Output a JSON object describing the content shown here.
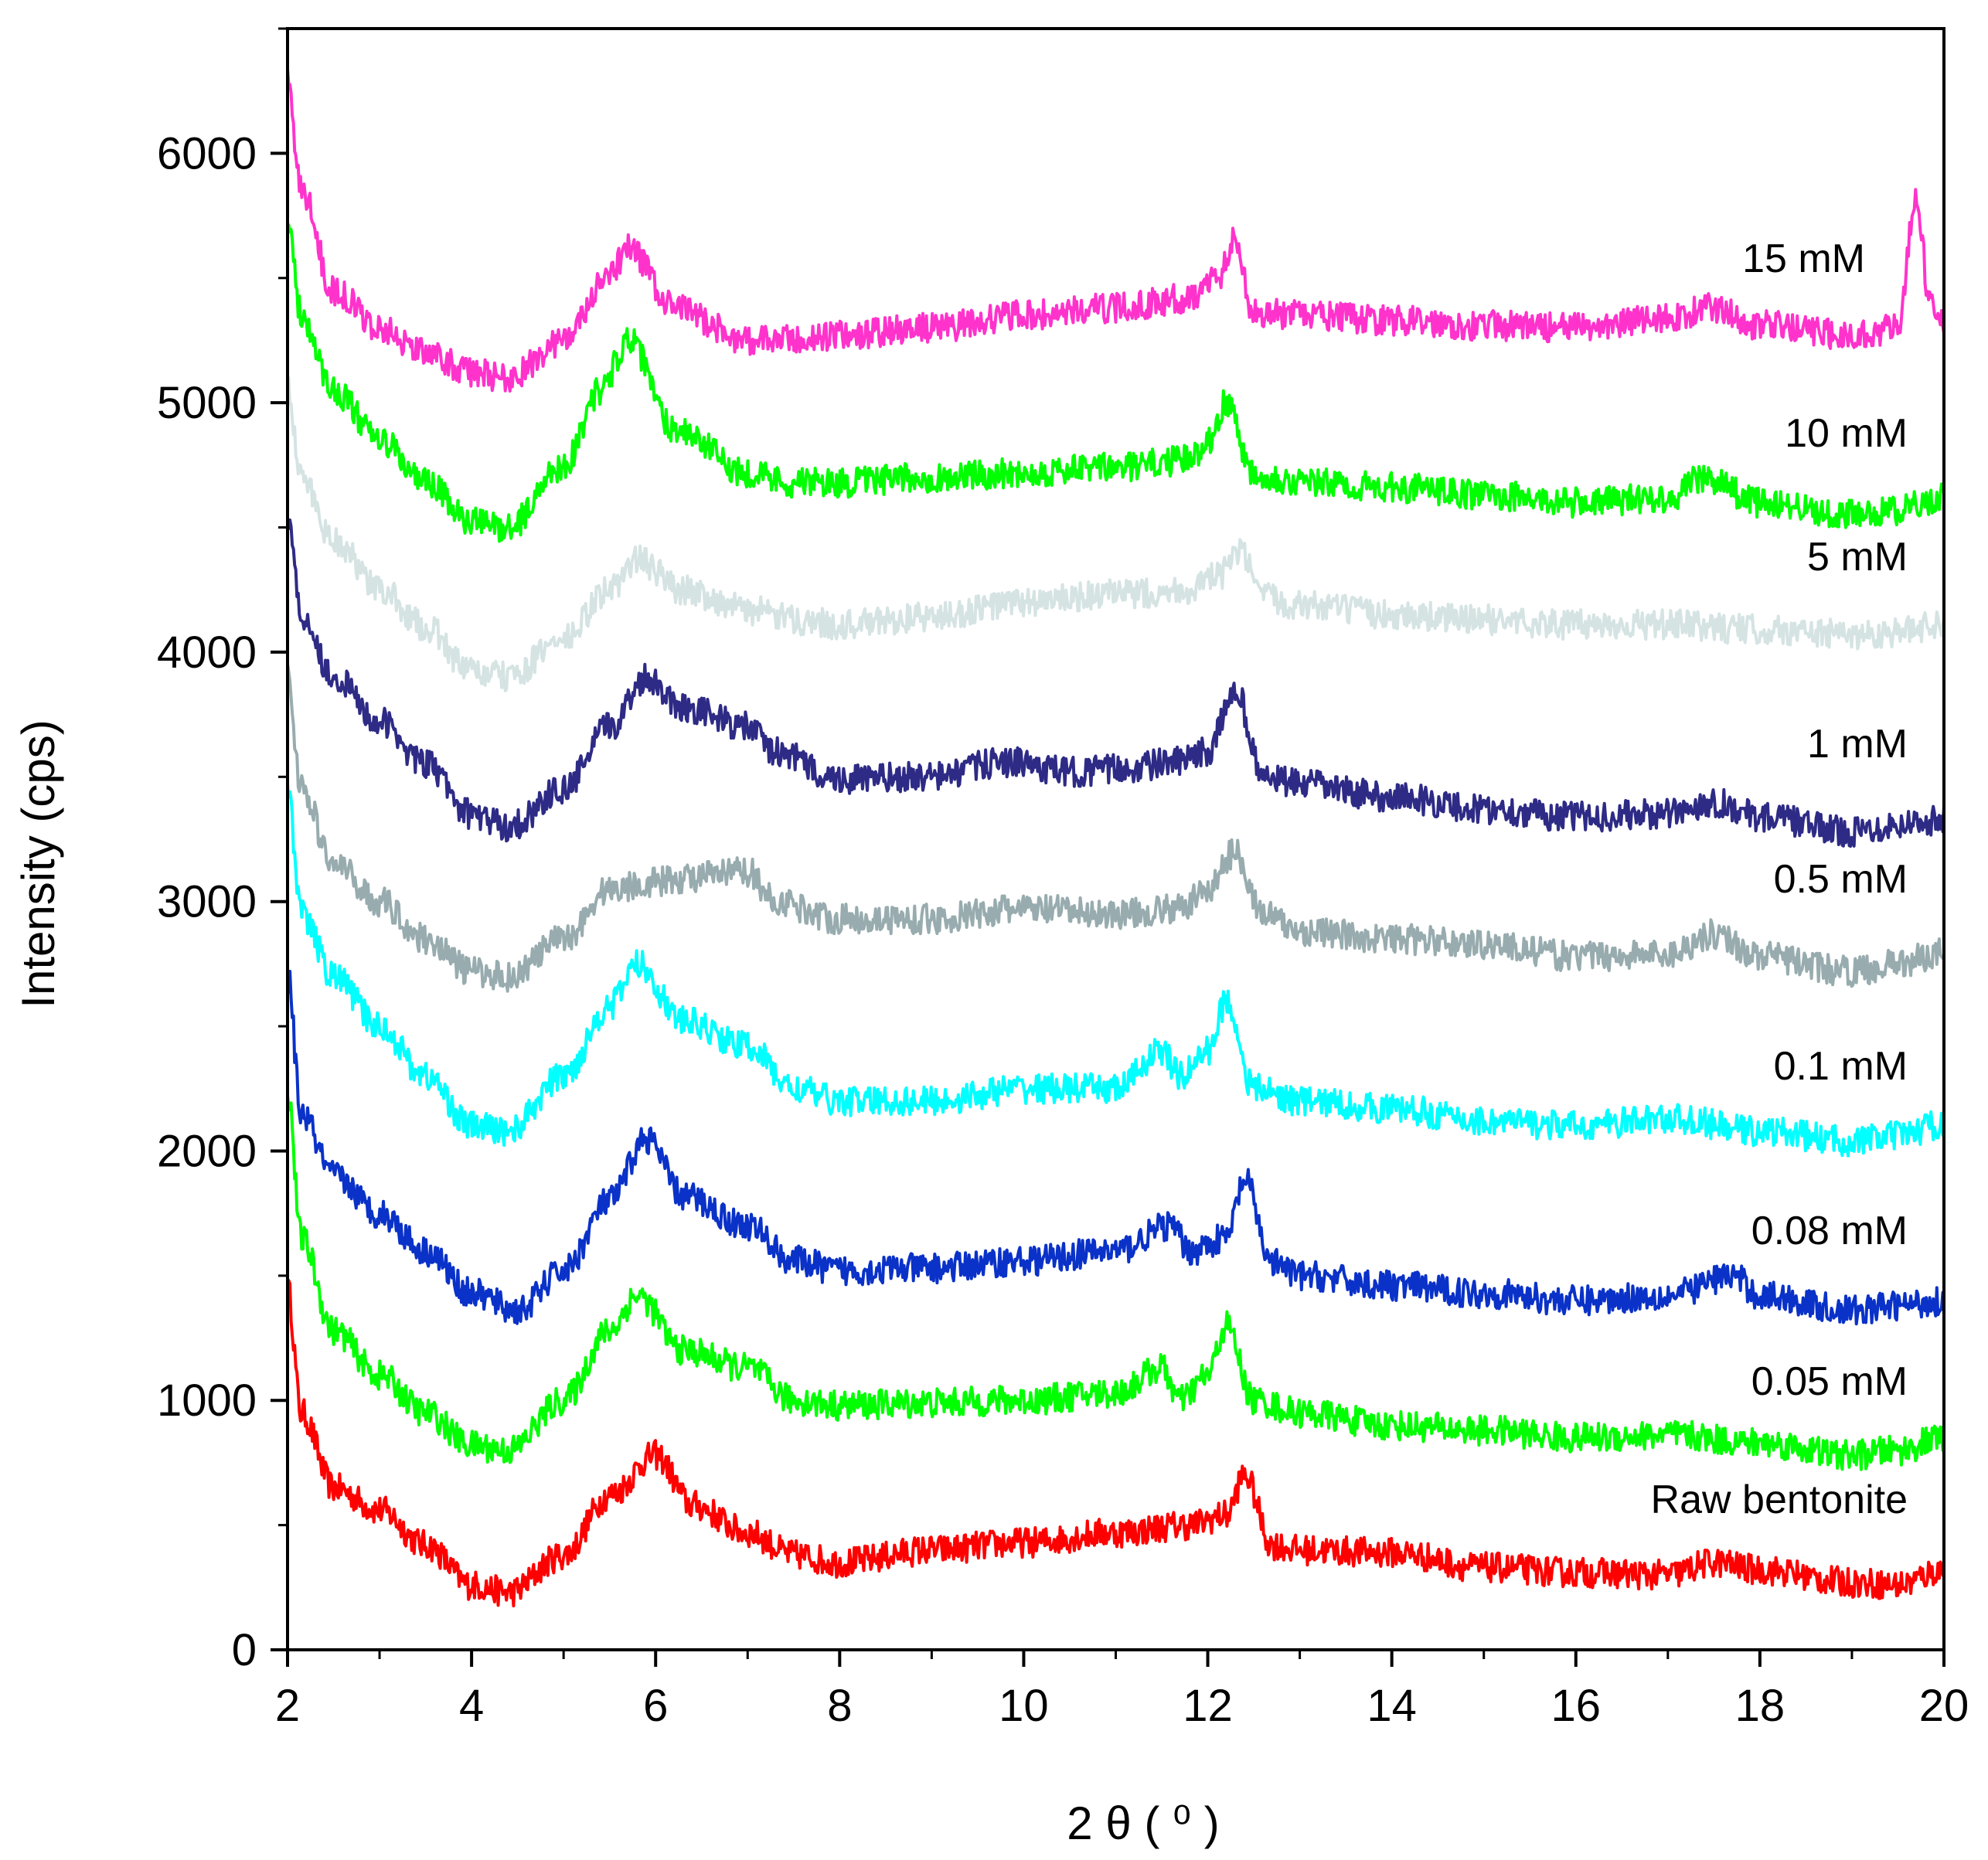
{
  "chart_data": {
    "type": "line",
    "title": "",
    "xlabel": "2 θ ( ⁰ )",
    "ylabel": "Intensity (cps)",
    "xlim": [
      2,
      20
    ],
    "ylim": [
      0,
      6500
    ],
    "xticks": [
      "2",
      "4",
      "6",
      "8",
      "10",
      "12",
      "14",
      "16",
      "18",
      "20"
    ],
    "yticks": [
      "0",
      "1000",
      "2000",
      "3000",
      "4000",
      "5000",
      "6000"
    ],
    "grid": false,
    "legend": "inline labels at right",
    "series": [
      {
        "name": "Raw bentonite",
        "color": "#ff0000",
        "points": [
          [
            2.0,
            1450
          ],
          [
            2.15,
            950
          ],
          [
            2.5,
            650
          ],
          [
            3.0,
            560
          ],
          [
            3.5,
            420
          ],
          [
            4.0,
            260
          ],
          [
            4.4,
            230
          ],
          [
            5.0,
            380
          ],
          [
            5.5,
            620
          ],
          [
            6.0,
            780
          ],
          [
            6.4,
            580
          ],
          [
            7.0,
            470
          ],
          [
            7.5,
            380
          ],
          [
            8.0,
            350
          ],
          [
            9.0,
            400
          ],
          [
            10.0,
            430
          ],
          [
            11.0,
            470
          ],
          [
            11.8,
            500
          ],
          [
            12.2,
            540
          ],
          [
            12.4,
            700
          ],
          [
            12.7,
            420
          ],
          [
            13.0,
            400
          ],
          [
            14.0,
            390
          ],
          [
            15.0,
            330
          ],
          [
            16.0,
            310
          ],
          [
            17.0,
            300
          ],
          [
            17.5,
            350
          ],
          [
            18.0,
            320
          ],
          [
            19.0,
            270
          ],
          [
            19.5,
            260
          ],
          [
            20.0,
            320
          ]
        ]
      },
      {
        "name": "0.05 mM",
        "color": "#00ff00",
        "points": [
          [
            2.0,
            2250
          ],
          [
            2.15,
            1650
          ],
          [
            2.5,
            1280
          ],
          [
            3.0,
            1100
          ],
          [
            3.5,
            950
          ],
          [
            4.0,
            820
          ],
          [
            4.4,
            800
          ],
          [
            5.0,
            1000
          ],
          [
            5.5,
            1280
          ],
          [
            5.8,
            1420
          ],
          [
            6.3,
            1200
          ],
          [
            7.0,
            1130
          ],
          [
            7.5,
            1000
          ],
          [
            8.0,
            980
          ],
          [
            9.0,
            990
          ],
          [
            10.0,
            1000
          ],
          [
            11.0,
            1030
          ],
          [
            11.5,
            1130
          ],
          [
            11.7,
            1000
          ],
          [
            12.0,
            1100
          ],
          [
            12.2,
            1300
          ],
          [
            12.5,
            1000
          ],
          [
            13.0,
            950
          ],
          [
            14.0,
            900
          ],
          [
            15.0,
            880
          ],
          [
            16.0,
            850
          ],
          [
            17.0,
            860
          ],
          [
            18.0,
            830
          ],
          [
            19.0,
            780
          ],
          [
            19.5,
            800
          ],
          [
            20.0,
            850
          ]
        ]
      },
      {
        "name": "0.08 mM",
        "color": "#0a32c8",
        "points": [
          [
            2.0,
            2700
          ],
          [
            2.15,
            2150
          ],
          [
            2.5,
            1900
          ],
          [
            3.0,
            1750
          ],
          [
            3.5,
            1600
          ],
          [
            4.0,
            1430
          ],
          [
            4.5,
            1360
          ],
          [
            5.0,
            1520
          ],
          [
            5.5,
            1800
          ],
          [
            5.9,
            2050
          ],
          [
            6.3,
            1820
          ],
          [
            7.0,
            1700
          ],
          [
            7.5,
            1560
          ],
          [
            8.0,
            1520
          ],
          [
            9.0,
            1530
          ],
          [
            10.0,
            1560
          ],
          [
            11.0,
            1600
          ],
          [
            11.6,
            1700
          ],
          [
            11.8,
            1600
          ],
          [
            12.2,
            1650
          ],
          [
            12.4,
            1880
          ],
          [
            12.7,
            1550
          ],
          [
            13.0,
            1500
          ],
          [
            14.0,
            1460
          ],
          [
            15.0,
            1430
          ],
          [
            16.0,
            1400
          ],
          [
            17.0,
            1420
          ],
          [
            17.7,
            1500
          ],
          [
            18.0,
            1420
          ],
          [
            19.0,
            1360
          ],
          [
            19.5,
            1380
          ],
          [
            20.0,
            1400
          ]
        ]
      },
      {
        "name": "0.1 mM",
        "color": "#00ffff",
        "points": [
          [
            2.0,
            3450
          ],
          [
            2.15,
            2950
          ],
          [
            2.5,
            2700
          ],
          [
            3.0,
            2500
          ],
          [
            3.5,
            2300
          ],
          [
            4.0,
            2100
          ],
          [
            4.4,
            2080
          ],
          [
            5.0,
            2300
          ],
          [
            5.5,
            2580
          ],
          [
            5.8,
            2750
          ],
          [
            6.3,
            2520
          ],
          [
            7.0,
            2420
          ],
          [
            7.5,
            2250
          ],
          [
            8.0,
            2200
          ],
          [
            9.0,
            2200
          ],
          [
            10.0,
            2250
          ],
          [
            11.0,
            2250
          ],
          [
            11.5,
            2400
          ],
          [
            11.7,
            2300
          ],
          [
            12.0,
            2400
          ],
          [
            12.2,
            2600
          ],
          [
            12.5,
            2250
          ],
          [
            13.0,
            2200
          ],
          [
            14.0,
            2170
          ],
          [
            15.0,
            2120
          ],
          [
            16.0,
            2100
          ],
          [
            17.0,
            2130
          ],
          [
            18.0,
            2080
          ],
          [
            19.0,
            2040
          ],
          [
            19.5,
            2060
          ],
          [
            20.0,
            2110
          ]
        ]
      },
      {
        "name": "0.5 mM",
        "color": "#98acaf",
        "points": [
          [
            2.0,
            3900
          ],
          [
            2.15,
            3450
          ],
          [
            2.5,
            3150
          ],
          [
            3.0,
            3000
          ],
          [
            3.5,
            2850
          ],
          [
            4.0,
            2720
          ],
          [
            4.4,
            2700
          ],
          [
            5.0,
            2850
          ],
          [
            5.5,
            3050
          ],
          [
            6.0,
            3080
          ],
          [
            6.5,
            3100
          ],
          [
            7.0,
            3120
          ],
          [
            7.3,
            3000
          ],
          [
            8.0,
            2930
          ],
          [
            9.0,
            2930
          ],
          [
            10.0,
            2970
          ],
          [
            11.0,
            2950
          ],
          [
            11.7,
            2970
          ],
          [
            12.0,
            3050
          ],
          [
            12.3,
            3200
          ],
          [
            12.6,
            2950
          ],
          [
            13.0,
            2880
          ],
          [
            14.0,
            2850
          ],
          [
            15.0,
            2830
          ],
          [
            16.0,
            2780
          ],
          [
            17.0,
            2790
          ],
          [
            17.5,
            2870
          ],
          [
            18.0,
            2780
          ],
          [
            19.0,
            2720
          ],
          [
            19.5,
            2750
          ],
          [
            20.0,
            2800
          ]
        ]
      },
      {
        "name": "1 mM",
        "color": "#2e2b86",
        "points": [
          [
            2.0,
            4550
          ],
          [
            2.15,
            4150
          ],
          [
            2.5,
            3900
          ],
          [
            3.0,
            3720
          ],
          [
            3.5,
            3550
          ],
          [
            4.0,
            3350
          ],
          [
            4.4,
            3300
          ],
          [
            5.0,
            3450
          ],
          [
            5.5,
            3700
          ],
          [
            5.9,
            3900
          ],
          [
            6.3,
            3780
          ],
          [
            7.0,
            3700
          ],
          [
            7.3,
            3600
          ],
          [
            8.0,
            3490
          ],
          [
            9.0,
            3500
          ],
          [
            9.8,
            3560
          ],
          [
            10.5,
            3520
          ],
          [
            11.0,
            3530
          ],
          [
            11.7,
            3560
          ],
          [
            12.0,
            3600
          ],
          [
            12.3,
            3850
          ],
          [
            12.6,
            3500
          ],
          [
            13.0,
            3470
          ],
          [
            14.0,
            3420
          ],
          [
            15.0,
            3370
          ],
          [
            16.0,
            3340
          ],
          [
            17.0,
            3350
          ],
          [
            17.5,
            3400
          ],
          [
            18.0,
            3340
          ],
          [
            19.0,
            3280
          ],
          [
            19.5,
            3310
          ],
          [
            20.0,
            3330
          ]
        ]
      },
      {
        "name": "5 mM",
        "color": "#d5e3e3",
        "points": [
          [
            2.0,
            5050
          ],
          [
            2.15,
            4700
          ],
          [
            2.5,
            4450
          ],
          [
            3.0,
            4250
          ],
          [
            3.5,
            4100
          ],
          [
            4.0,
            3920
          ],
          [
            4.4,
            3900
          ],
          [
            5.0,
            4050
          ],
          [
            5.5,
            4250
          ],
          [
            5.8,
            4370
          ],
          [
            6.3,
            4250
          ],
          [
            7.0,
            4170
          ],
          [
            7.5,
            4130
          ],
          [
            8.0,
            4110
          ],
          [
            9.0,
            4140
          ],
          [
            10.0,
            4200
          ],
          [
            11.0,
            4230
          ],
          [
            11.8,
            4250
          ],
          [
            12.1,
            4300
          ],
          [
            12.35,
            4400
          ],
          [
            12.6,
            4220
          ],
          [
            13.0,
            4190
          ],
          [
            14.0,
            4150
          ],
          [
            15.0,
            4130
          ],
          [
            16.0,
            4110
          ],
          [
            17.0,
            4110
          ],
          [
            18.0,
            4090
          ],
          [
            19.0,
            4070
          ],
          [
            19.5,
            4080
          ],
          [
            20.0,
            4120
          ]
        ]
      },
      {
        "name": "10 mM",
        "color": "#00ff00",
        "points": [
          [
            2.0,
            5750
          ],
          [
            2.15,
            5350
          ],
          [
            2.5,
            5050
          ],
          [
            3.0,
            4850
          ],
          [
            3.5,
            4680
          ],
          [
            4.0,
            4520
          ],
          [
            4.4,
            4500
          ],
          [
            5.0,
            4750
          ],
          [
            5.4,
            5050
          ],
          [
            5.7,
            5250
          ],
          [
            6.2,
            4900
          ],
          [
            7.0,
            4720
          ],
          [
            7.5,
            4680
          ],
          [
            8.0,
            4680
          ],
          [
            9.0,
            4700
          ],
          [
            10.0,
            4720
          ],
          [
            11.0,
            4740
          ],
          [
            11.8,
            4770
          ],
          [
            12.0,
            4850
          ],
          [
            12.2,
            5000
          ],
          [
            12.5,
            4720
          ],
          [
            13.0,
            4680
          ],
          [
            14.0,
            4660
          ],
          [
            15.0,
            4630
          ],
          [
            16.0,
            4600
          ],
          [
            17.0,
            4620
          ],
          [
            17.4,
            4700
          ],
          [
            18.0,
            4600
          ],
          [
            19.0,
            4550
          ],
          [
            19.5,
            4570
          ],
          [
            20.0,
            4620
          ]
        ]
      },
      {
        "name": "15 mM",
        "color": "#ff33cc",
        "points": [
          [
            2.0,
            6300
          ],
          [
            2.15,
            5850
          ],
          [
            2.5,
            5450
          ],
          [
            3.0,
            5300
          ],
          [
            3.5,
            5200
          ],
          [
            4.0,
            5120
          ],
          [
            4.4,
            5100
          ],
          [
            5.0,
            5250
          ],
          [
            5.5,
            5500
          ],
          [
            5.7,
            5620
          ],
          [
            6.2,
            5380
          ],
          [
            7.0,
            5250
          ],
          [
            7.5,
            5250
          ],
          [
            8.0,
            5270
          ],
          [
            9.0,
            5300
          ],
          [
            10.0,
            5350
          ],
          [
            11.0,
            5380
          ],
          [
            11.8,
            5420
          ],
          [
            12.1,
            5500
          ],
          [
            12.3,
            5650
          ],
          [
            12.5,
            5360
          ],
          [
            13.0,
            5350
          ],
          [
            14.0,
            5330
          ],
          [
            15.0,
            5310
          ],
          [
            16.0,
            5300
          ],
          [
            17.0,
            5340
          ],
          [
            17.5,
            5380
          ],
          [
            18.0,
            5310
          ],
          [
            19.0,
            5270
          ],
          [
            19.5,
            5300
          ],
          [
            19.7,
            5820
          ],
          [
            19.85,
            5400
          ],
          [
            20.0,
            5320
          ]
        ]
      }
    ]
  }
}
